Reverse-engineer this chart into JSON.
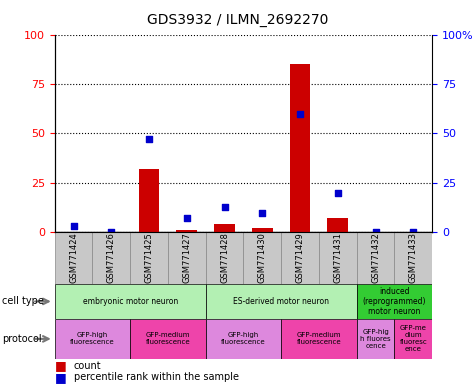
{
  "title": "GDS3932 / ILMN_2692270",
  "samples": [
    "GSM771424",
    "GSM771426",
    "GSM771425",
    "GSM771427",
    "GSM771428",
    "GSM771430",
    "GSM771429",
    "GSM771431",
    "GSM771432",
    "GSM771433"
  ],
  "counts": [
    0,
    0,
    32,
    1,
    4,
    2,
    85,
    7,
    0,
    0
  ],
  "percentile_ranks": [
    3,
    0,
    47,
    7,
    13,
    10,
    60,
    20,
    0,
    0
  ],
  "cell_types": [
    {
      "label": "embryonic motor neuron",
      "start": 0,
      "end": 4,
      "color": "#b3f0b3"
    },
    {
      "label": "ES-derived motor neuron",
      "start": 4,
      "end": 8,
      "color": "#b3f0b3"
    },
    {
      "label": "induced\n(reprogrammed)\nmotor neuron",
      "start": 8,
      "end": 10,
      "color": "#33cc33"
    }
  ],
  "protocols": [
    {
      "label": "GFP-high\nfluorescence",
      "start": 0,
      "end": 2,
      "color": "#dd88dd"
    },
    {
      "label": "GFP-medium\nfluorescence",
      "start": 2,
      "end": 4,
      "color": "#ee44aa"
    },
    {
      "label": "GFP-high\nfluorescence",
      "start": 4,
      "end": 6,
      "color": "#dd88dd"
    },
    {
      "label": "GFP-medium\nfluorescence",
      "start": 6,
      "end": 8,
      "color": "#ee44aa"
    },
    {
      "label": "GFP-hig\nh fluores\ncence",
      "start": 8,
      "end": 9,
      "color": "#dd88dd"
    },
    {
      "label": "GFP-me\ndium\nfluoresc\nence",
      "start": 9,
      "end": 10,
      "color": "#ee44aa"
    }
  ],
  "bar_color": "#CC0000",
  "dot_color": "#0000CC",
  "ylim": [
    0,
    100
  ],
  "yticks": [
    0,
    25,
    50,
    75,
    100
  ],
  "sample_bg_color": "#c8c8c8",
  "border_color": "#888888"
}
